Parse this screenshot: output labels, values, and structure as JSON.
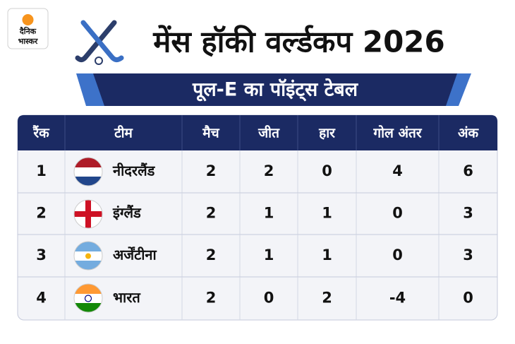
{
  "logo": {
    "line1": "दैनिक",
    "line2": "भास्कर"
  },
  "header": {
    "title": "मेंस हॉकी वर्ल्डकप 2026",
    "subtitle": "पूल-E का पॉइंट्स टेबल"
  },
  "table": {
    "columns": [
      "रैंक",
      "टीम",
      "मैच",
      "जीत",
      "हार",
      "गोल अंतर",
      "अंक"
    ],
    "rows": [
      [
        1,
        "नीदरलैंड",
        2,
        2,
        0,
        4,
        6
      ],
      [
        2,
        "इंग्लैंड",
        2,
        1,
        1,
        0,
        3
      ],
      [
        3,
        "अर्जेंटीना",
        2,
        1,
        1,
        0,
        3
      ],
      [
        4,
        "भारत",
        2,
        0,
        2,
        -4,
        0
      ]
    ]
  }
}
